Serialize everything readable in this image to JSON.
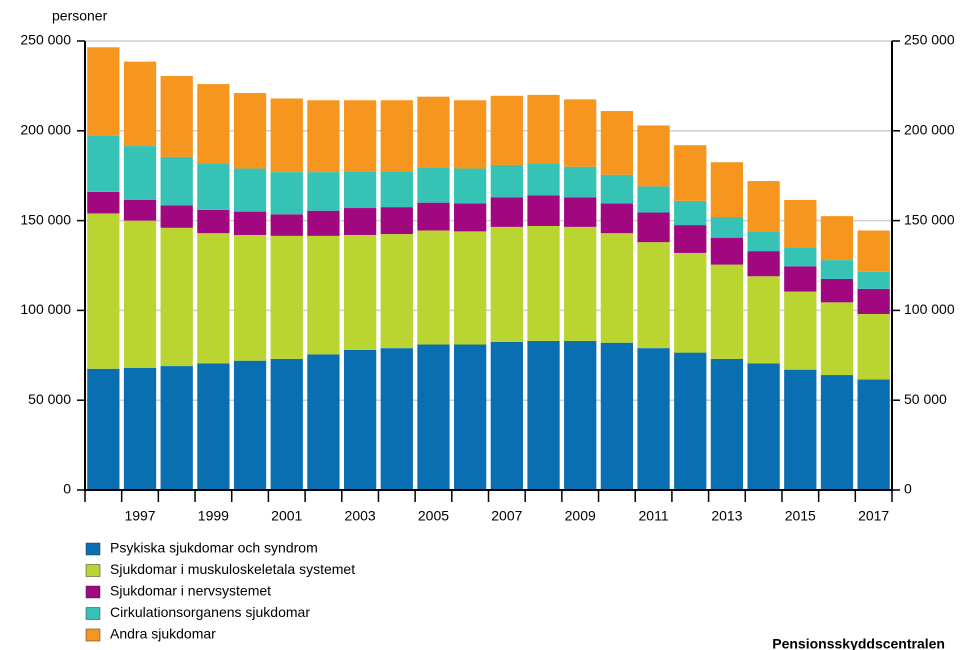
{
  "chart_data": {
    "type": "stacked_bar",
    "y_axis_label": "personer",
    "source": "Pensionsskyddscentralen",
    "categories": [
      null,
      "1997",
      null,
      "1999",
      null,
      "2001",
      null,
      "2003",
      null,
      "2005",
      null,
      "2007",
      null,
      "2009",
      null,
      "2011",
      null,
      "2013",
      null,
      "2015",
      null,
      "2017"
    ],
    "series": [
      {
        "name": "Psykiska sjukdomar och syndrom",
        "color": "#0a6fb0",
        "values": [
          67500,
          68000,
          69000,
          70500,
          72000,
          73000,
          75500,
          78000,
          79000,
          81000,
          81000,
          82500,
          83000,
          83000,
          82000,
          79000,
          76500,
          73000,
          70500,
          67000,
          64000,
          61500
        ]
      },
      {
        "name": "Sjukdomar i muskuloskeletala systemet",
        "color": "#bad431",
        "values": [
          86500,
          82000,
          77000,
          72500,
          70000,
          68500,
          66000,
          64000,
          63500,
          63500,
          63000,
          64000,
          64000,
          63500,
          61000,
          59000,
          55500,
          52500,
          48500,
          43500,
          40500,
          36500
        ]
      },
      {
        "name": "Sjukdomar i nervsystemet",
        "color": "#a1087f",
        "values": [
          12000,
          11500,
          12500,
          13000,
          13000,
          12000,
          14000,
          15000,
          15000,
          15500,
          15500,
          16500,
          17000,
          16500,
          16500,
          16500,
          15500,
          15000,
          14000,
          14000,
          13000,
          14000
        ]
      },
      {
        "name": "Cirkulationsorganens sjukdomar",
        "color": "#36c3b6",
        "values": [
          31500,
          30000,
          27000,
          26000,
          24000,
          23500,
          21500,
          20500,
          20000,
          19500,
          19500,
          18000,
          18000,
          17000,
          16000,
          14500,
          13500,
          11500,
          11000,
          10500,
          10500,
          9500
        ]
      },
      {
        "name": "Andra sjukdomar",
        "color": "#f7961f",
        "values": [
          49000,
          47000,
          45000,
          44000,
          42000,
          41000,
          40000,
          39500,
          39500,
          39500,
          38000,
          38500,
          38000,
          37500,
          35500,
          34000,
          31000,
          30500,
          28000,
          26500,
          24500,
          23000
        ]
      }
    ],
    "ylim": [
      0,
      250000
    ],
    "yticks": [
      0,
      {
        "value": 50000,
        "label": "50 000"
      },
      {
        "value": 100000,
        "label": "100 000"
      },
      {
        "value": 150000,
        "label": "150 000"
      },
      {
        "value": 200000,
        "label": "200 000"
      },
      {
        "value": 250000,
        "label": "250 000"
      }
    ],
    "y2lim": [
      0,
      250000
    ],
    "y2ticks": [
      0,
      {
        "value": 50000,
        "label": "50 000"
      },
      {
        "value": 100000,
        "label": "100 000"
      },
      {
        "value": 150000,
        "label": "150 000"
      },
      {
        "value": 200000,
        "label": "200 000"
      },
      {
        "value": 250000,
        "label": "250 000"
      }
    ],
    "grid": true
  }
}
